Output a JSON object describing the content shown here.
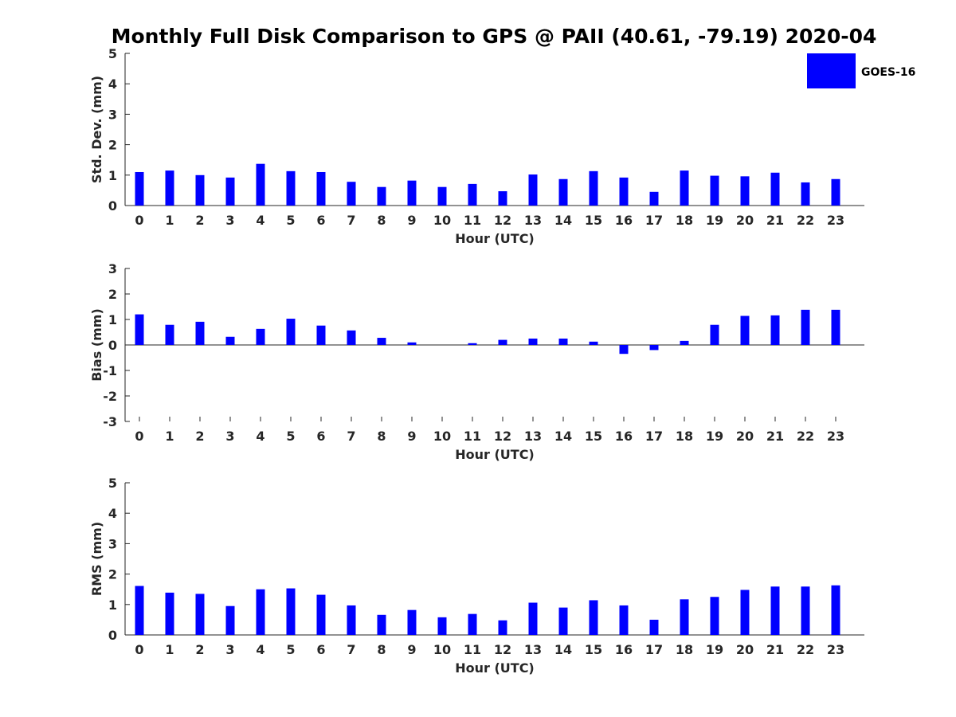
{
  "chart_data": {
    "title": "Monthly Full Disk Comparison to GPS @ PAII (40.61, -79.19) 2020-04",
    "legend": {
      "entries": [
        "GOES-16"
      ],
      "location": "top-right",
      "color": "#0000ff"
    },
    "bar_color": "#0000ff",
    "panels": [
      {
        "type": "bar",
        "series": [
          {
            "name": "GOES-16",
            "values": [
              1.1,
              1.15,
              1.0,
              0.92,
              1.37,
              1.13,
              1.1,
              0.78,
              0.61,
              0.82,
              0.61,
              0.71,
              0.47,
              1.02,
              0.87,
              1.13,
              0.92,
              0.45,
              1.15,
              0.98,
              0.96,
              1.08,
              0.76,
              0.87
            ]
          }
        ],
        "categories": [
          "0",
          "1",
          "2",
          "3",
          "4",
          "5",
          "6",
          "7",
          "8",
          "9",
          "10",
          "11",
          "12",
          "13",
          "14",
          "15",
          "16",
          "17",
          "18",
          "19",
          "20",
          "21",
          "22",
          "23"
        ],
        "xlabel": "Hour (UTC)",
        "ylabel": "Std. Dev. (mm)",
        "ylim": [
          0,
          5
        ],
        "yticks": [
          "0",
          "1",
          "2",
          "3",
          "4",
          "5"
        ]
      },
      {
        "type": "bar",
        "series": [
          {
            "name": "GOES-16",
            "values": [
              1.2,
              0.79,
              0.91,
              0.32,
              0.63,
              1.03,
              0.76,
              0.57,
              0.28,
              0.1,
              0.0,
              0.07,
              0.2,
              0.25,
              0.25,
              0.13,
              -0.35,
              -0.2,
              0.16,
              0.79,
              1.14,
              1.16,
              1.38,
              1.38
            ]
          }
        ],
        "categories": [
          "0",
          "1",
          "2",
          "3",
          "4",
          "5",
          "6",
          "7",
          "8",
          "9",
          "10",
          "11",
          "12",
          "13",
          "14",
          "15",
          "16",
          "17",
          "18",
          "19",
          "20",
          "21",
          "22",
          "23"
        ],
        "xlabel": "Hour (UTC)",
        "ylabel": "Bias (mm)",
        "ylim": [
          -3,
          3
        ],
        "yticks": [
          "-3",
          "-2",
          "-1",
          "0",
          "1",
          "2",
          "3"
        ]
      },
      {
        "type": "bar",
        "series": [
          {
            "name": "GOES-16",
            "values": [
              1.61,
              1.39,
              1.35,
              0.95,
              1.5,
              1.53,
              1.32,
              0.97,
              0.66,
              0.82,
              0.58,
              0.69,
              0.48,
              1.06,
              0.9,
              1.14,
              0.97,
              0.5,
              1.17,
              1.25,
              1.48,
              1.59,
              1.59,
              1.63
            ]
          }
        ],
        "categories": [
          "0",
          "1",
          "2",
          "3",
          "4",
          "5",
          "6",
          "7",
          "8",
          "9",
          "10",
          "11",
          "12",
          "13",
          "14",
          "15",
          "16",
          "17",
          "18",
          "19",
          "20",
          "21",
          "22",
          "23"
        ],
        "xlabel": "Hour (UTC)",
        "ylabel": "RMS (mm)",
        "ylim": [
          0,
          5
        ],
        "yticks": [
          "0",
          "1",
          "2",
          "3",
          "4",
          "5"
        ]
      }
    ]
  }
}
